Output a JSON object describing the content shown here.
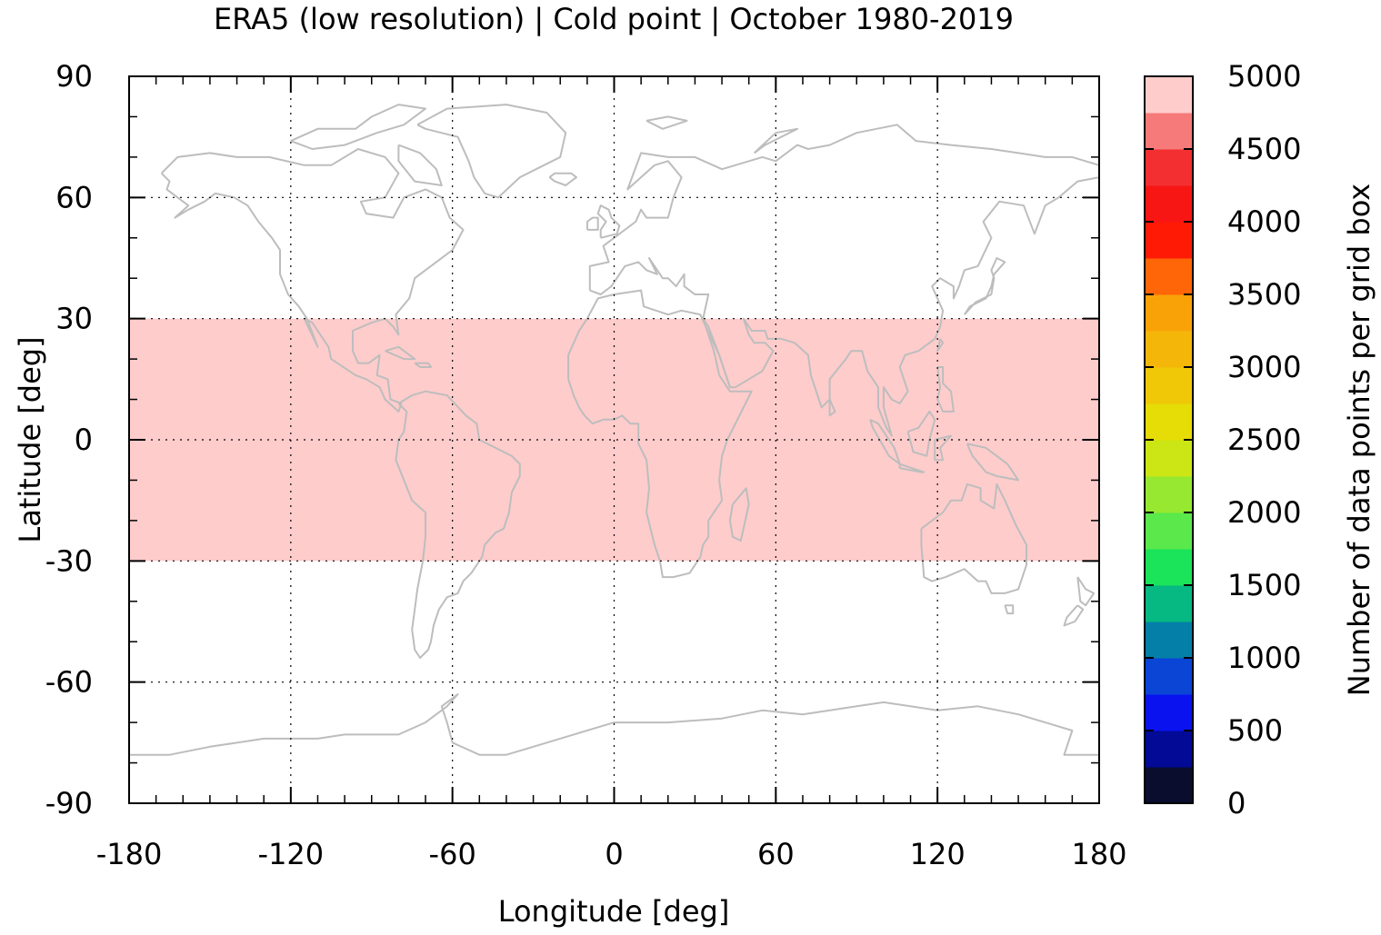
{
  "chart_data": {
    "type": "heatmap",
    "title": "ERA5 (low resolution) | Cold point | October 1980-2019",
    "xlabel": "Longitude [deg]",
    "ylabel": "Latitude [deg]",
    "xlim": [
      -180,
      180
    ],
    "ylim": [
      -90,
      90
    ],
    "xticks": [
      -180,
      -120,
      -60,
      0,
      60,
      120,
      180
    ],
    "yticks": [
      90,
      60,
      30,
      0,
      -30,
      -60,
      -90
    ],
    "grid": true,
    "data_band": {
      "lat_min": -30,
      "lat_max": 30,
      "lon_min": -180,
      "lon_max": 180,
      "value": 5000,
      "color": "#ffcccc"
    },
    "colorbar": {
      "label": "Number of data points per grid box",
      "ticks": [
        0,
        500,
        1000,
        1500,
        2000,
        2500,
        3000,
        3500,
        4000,
        4500,
        5000
      ],
      "levels": [
        {
          "min": 0,
          "max": 250,
          "color": "#0b0d2e"
        },
        {
          "min": 250,
          "max": 500,
          "color": "#020a96"
        },
        {
          "min": 500,
          "max": 750,
          "color": "#0a12f0"
        },
        {
          "min": 750,
          "max": 1000,
          "color": "#0a45d6"
        },
        {
          "min": 1000,
          "max": 1250,
          "color": "#0480a8"
        },
        {
          "min": 1250,
          "max": 1500,
          "color": "#06b882"
        },
        {
          "min": 1500,
          "max": 1750,
          "color": "#1be35a"
        },
        {
          "min": 1750,
          "max": 2000,
          "color": "#5ae84a"
        },
        {
          "min": 2000,
          "max": 2250,
          "color": "#96e830"
        },
        {
          "min": 2250,
          "max": 2500,
          "color": "#cbe614"
        },
        {
          "min": 2500,
          "max": 2750,
          "color": "#e6dc06"
        },
        {
          "min": 2750,
          "max": 3000,
          "color": "#f0c808"
        },
        {
          "min": 3000,
          "max": 3250,
          "color": "#f5b60a"
        },
        {
          "min": 3250,
          "max": 3500,
          "color": "#f9a208"
        },
        {
          "min": 3500,
          "max": 3750,
          "color": "#ff6607"
        },
        {
          "min": 3750,
          "max": 4000,
          "color": "#ff1a06"
        },
        {
          "min": 4000,
          "max": 4250,
          "color": "#f81615"
        },
        {
          "min": 4250,
          "max": 4500,
          "color": "#f42f31"
        },
        {
          "min": 4500,
          "max": 4750,
          "color": "#f67a7a"
        },
        {
          "min": 4750,
          "max": 5000,
          "color": "#ffcccc"
        }
      ]
    },
    "coastline_color": "#bdbdbd"
  }
}
